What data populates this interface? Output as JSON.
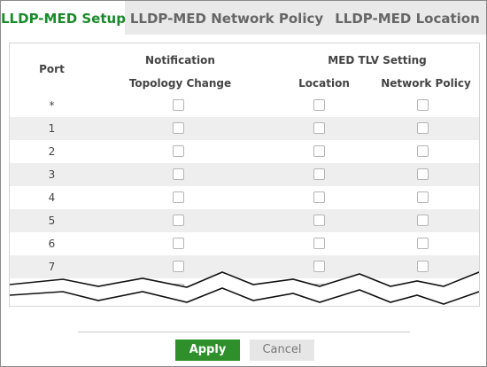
{
  "tabs": [
    {
      "label": "LLDP-MED Setup",
      "active": true
    },
    {
      "label": "LLDP-MED Network Policy",
      "active": false
    },
    {
      "label": "LLDP-MED Location",
      "active": false
    }
  ],
  "table": {
    "col_port": "Port",
    "group_notification": "Notification",
    "group_med_tlv": "MED TLV Setting",
    "col_topology": "Topology Change",
    "col_location": "Location",
    "col_network_policy": "Network Policy",
    "rows": [
      {
        "port": "*"
      },
      {
        "port": "1"
      },
      {
        "port": "2"
      },
      {
        "port": "3"
      },
      {
        "port": "4"
      },
      {
        "port": "5"
      },
      {
        "port": "6"
      },
      {
        "port": "7"
      }
    ]
  },
  "buttons": {
    "apply": "Apply",
    "cancel": "Cancel"
  },
  "colors": {
    "accent": "#1a8a2a",
    "apply_bg": "#2f8f2a",
    "row_alt": "#eeeeee"
  }
}
